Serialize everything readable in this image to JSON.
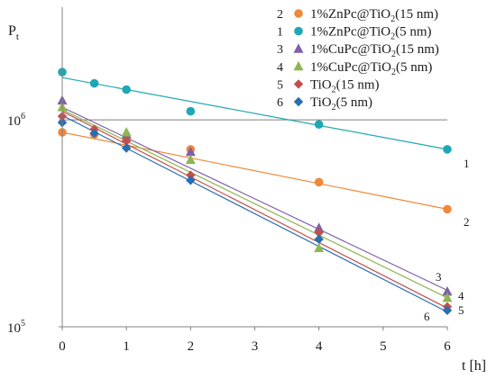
{
  "chart_data": {
    "type": "scatter",
    "ylabel": "P",
    "ylabel_sub": "t",
    "xlabel": "t [h]",
    "xlim": [
      0,
      6
    ],
    "x_ticks": [
      "0",
      "1",
      "2",
      "3",
      "4",
      "5",
      "6"
    ],
    "y_scale": "log",
    "ylim": [
      100000,
      3500000
    ],
    "y_ticks": [
      {
        "value": 100000,
        "base": "10",
        "exp": "5"
      },
      {
        "value": 1000000,
        "base": "10",
        "exp": "6"
      }
    ],
    "reference_line": {
      "y": 1000000,
      "color": "#808080"
    },
    "series": [
      {
        "id": "2",
        "name": "1%ZnPc@TiO2(15 nm)",
        "label_parts": [
          {
            "text": "1%ZnPc@TiO"
          },
          {
            "text": "2",
            "sub": true
          },
          {
            "text": "(15 nm)"
          }
        ],
        "marker": "circle",
        "color": "#F0883A",
        "x": [
          0,
          0.5,
          1,
          2,
          4,
          6
        ],
        "y": [
          870000,
          850000,
          800000,
          720000,
          500000,
          370000
        ],
        "fit": [
          [
            0,
            870000
          ],
          [
            6,
            370000
          ]
        ],
        "line_label": "2"
      },
      {
        "id": "1",
        "name": "1%ZnPc@TiO2(5 nm)",
        "label_parts": [
          {
            "text": "1%ZnPc@TiO"
          },
          {
            "text": "2",
            "sub": true
          },
          {
            "text": "(5 nm)"
          }
        ],
        "marker": "circle",
        "color": "#1FA8B4",
        "x": [
          0,
          0.5,
          1,
          2,
          4,
          6
        ],
        "y": [
          1700000,
          1500000,
          1400000,
          1100000,
          950000,
          720000
        ],
        "fit": [
          [
            0,
            1600000
          ],
          [
            6,
            720000
          ]
        ],
        "line_label": "1"
      },
      {
        "id": "3",
        "name": "1%CuPc@TiO2(15 nm)",
        "label_parts": [
          {
            "text": "1%CuPc@TiO"
          },
          {
            "text": "2",
            "sub": true
          },
          {
            "text": "(15 nm)"
          }
        ],
        "marker": "triangle",
        "color": "#8060A8",
        "x": [
          0,
          1,
          2,
          4,
          6
        ],
        "y": [
          1240000,
          850000,
          700000,
          300000,
          148000
        ],
        "fit": [
          [
            0,
            1150000
          ],
          [
            6,
            150000
          ]
        ],
        "line_label": "3"
      },
      {
        "id": "4",
        "name": "1%CuPc@TiO2(5 nm)",
        "label_parts": [
          {
            "text": "1%CuPc@TiO"
          },
          {
            "text": "2",
            "sub": true
          },
          {
            "text": "(5 nm)"
          }
        ],
        "marker": "triangle",
        "color": "#8FB650",
        "x": [
          0,
          1,
          2,
          4,
          6
        ],
        "y": [
          1150000,
          870000,
          640000,
          240000,
          138000
        ],
        "fit": [
          [
            0,
            1120000
          ],
          [
            6,
            138000
          ]
        ],
        "line_label": "4"
      },
      {
        "id": "5",
        "name": "TiO2(15 nm)",
        "label_parts": [
          {
            "text": "TiO"
          },
          {
            "text": "2",
            "sub": true
          },
          {
            "text": "(15 nm)"
          }
        ],
        "marker": "diamond",
        "color": "#C0504D",
        "x": [
          0,
          0.5,
          1,
          2,
          4,
          6
        ],
        "y": [
          1040000,
          900000,
          790000,
          540000,
          285000,
          125000
        ],
        "fit": [
          [
            0,
            1100000
          ],
          [
            6,
            123000
          ]
        ],
        "line_label": "5"
      },
      {
        "id": "6",
        "name": "TiO2(5 nm)",
        "label_parts": [
          {
            "text": "TiO"
          },
          {
            "text": "2",
            "sub": true
          },
          {
            "text": "(5 nm)"
          }
        ],
        "marker": "diamond",
        "color": "#2A6DB0",
        "x": [
          0,
          0.5,
          1,
          2,
          4,
          6
        ],
        "y": [
          970000,
          860000,
          730000,
          510000,
          265000,
          120000
        ],
        "fit": [
          [
            0,
            1050000
          ],
          [
            6,
            118000
          ]
        ],
        "line_label": "6"
      }
    ],
    "legend": {
      "placement": "top-right",
      "entries": [
        {
          "num": "2",
          "series_index": 0
        },
        {
          "num": "1",
          "series_index": 1
        },
        {
          "num": "3",
          "series_index": 2
        },
        {
          "num": "4",
          "series_index": 3
        },
        {
          "num": "5",
          "series_index": 4
        },
        {
          "num": "6",
          "series_index": 5
        }
      ]
    },
    "grid": false
  }
}
